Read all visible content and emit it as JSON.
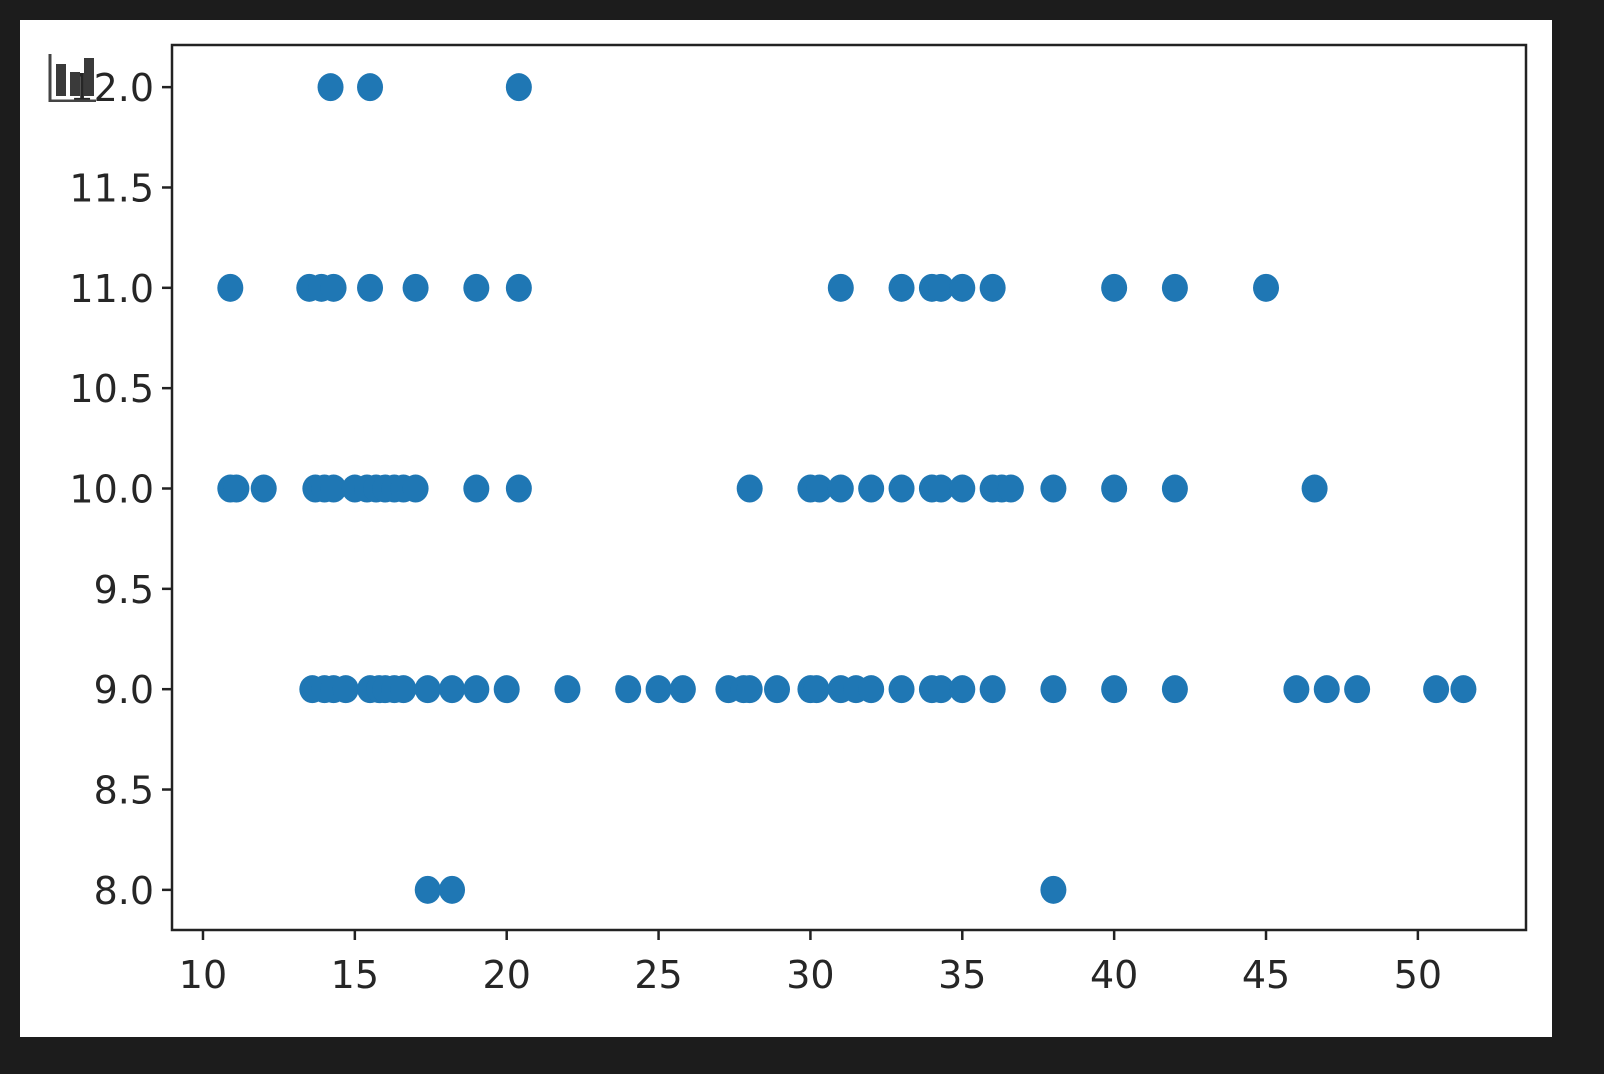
{
  "icons": {
    "chart_toggle": "bar-chart-icon"
  },
  "colors": {
    "marker": "#1f77b4",
    "axes": "#222222",
    "background": "#ffffff",
    "frame": "#1c1c1c"
  },
  "chart_data": {
    "type": "scatter",
    "title": "",
    "xlabel": "",
    "ylabel": "",
    "xlim": [
      8.98,
      53.56
    ],
    "ylim": [
      7.8,
      12.21
    ],
    "grid": false,
    "xticks": [
      10,
      15,
      20,
      25,
      30,
      35,
      40,
      45,
      50
    ],
    "xtick_labels": [
      "10",
      "15",
      "20",
      "25",
      "30",
      "35",
      "40",
      "45",
      "50"
    ],
    "yticks": [
      8.0,
      8.5,
      9.0,
      9.5,
      10.0,
      10.5,
      11.0,
      11.5,
      12.0
    ],
    "ytick_labels": [
      "8.0",
      "8.5",
      "9.0",
      "9.5",
      "10.0",
      "10.5",
      "11.0",
      "11.5",
      "12.0"
    ],
    "series": [
      {
        "points": [
          [
            14.2,
            12
          ],
          [
            15.5,
            12
          ],
          [
            20.4,
            12
          ],
          [
            10.9,
            11
          ],
          [
            13.5,
            11
          ],
          [
            13.9,
            11
          ],
          [
            14.3,
            11
          ],
          [
            15.5,
            11
          ],
          [
            17.0,
            11
          ],
          [
            19.0,
            11
          ],
          [
            20.4,
            11
          ],
          [
            31.0,
            11
          ],
          [
            33.0,
            11
          ],
          [
            34.0,
            11
          ],
          [
            34.3,
            11
          ],
          [
            35.0,
            11
          ],
          [
            36.0,
            11
          ],
          [
            40.0,
            11
          ],
          [
            42.0,
            11
          ],
          [
            45.0,
            11
          ],
          [
            10.9,
            10
          ],
          [
            11.1,
            10
          ],
          [
            12.0,
            10
          ],
          [
            13.7,
            10
          ],
          [
            14.0,
            10
          ],
          [
            14.3,
            10
          ],
          [
            15.0,
            10
          ],
          [
            15.4,
            10
          ],
          [
            15.7,
            10
          ],
          [
            16.0,
            10
          ],
          [
            16.3,
            10
          ],
          [
            16.6,
            10
          ],
          [
            17.0,
            10
          ],
          [
            19.0,
            10
          ],
          [
            20.4,
            10
          ],
          [
            28.0,
            10
          ],
          [
            30.0,
            10
          ],
          [
            30.3,
            10
          ],
          [
            31.0,
            10
          ],
          [
            32.0,
            10
          ],
          [
            33.0,
            10
          ],
          [
            34.0,
            10
          ],
          [
            34.3,
            10
          ],
          [
            35.0,
            10
          ],
          [
            36.0,
            10
          ],
          [
            36.3,
            10
          ],
          [
            36.6,
            10
          ],
          [
            38.0,
            10
          ],
          [
            40.0,
            10
          ],
          [
            42.0,
            10
          ],
          [
            46.6,
            10
          ],
          [
            13.6,
            9
          ],
          [
            14.0,
            9
          ],
          [
            14.3,
            9
          ],
          [
            14.7,
            9
          ],
          [
            15.5,
            9
          ],
          [
            15.8,
            9
          ],
          [
            16.0,
            9
          ],
          [
            16.3,
            9
          ],
          [
            16.6,
            9
          ],
          [
            17.4,
            9
          ],
          [
            18.2,
            9
          ],
          [
            19.0,
            9
          ],
          [
            20.0,
            9
          ],
          [
            22.0,
            9
          ],
          [
            24.0,
            9
          ],
          [
            25.0,
            9
          ],
          [
            25.8,
            9
          ],
          [
            27.3,
            9
          ],
          [
            27.8,
            9
          ],
          [
            28.0,
            9
          ],
          [
            28.9,
            9
          ],
          [
            30.0,
            9
          ],
          [
            30.2,
            9
          ],
          [
            31.0,
            9
          ],
          [
            31.5,
            9
          ],
          [
            32.0,
            9
          ],
          [
            33.0,
            9
          ],
          [
            34.0,
            9
          ],
          [
            34.3,
            9
          ],
          [
            35.0,
            9
          ],
          [
            36.0,
            9
          ],
          [
            38.0,
            9
          ],
          [
            40.0,
            9
          ],
          [
            42.0,
            9
          ],
          [
            46.0,
            9
          ],
          [
            47.0,
            9
          ],
          [
            48.0,
            9
          ],
          [
            50.6,
            9
          ],
          [
            51.5,
            9
          ],
          [
            17.4,
            8
          ],
          [
            18.2,
            8
          ],
          [
            38.0,
            8
          ]
        ]
      }
    ]
  }
}
